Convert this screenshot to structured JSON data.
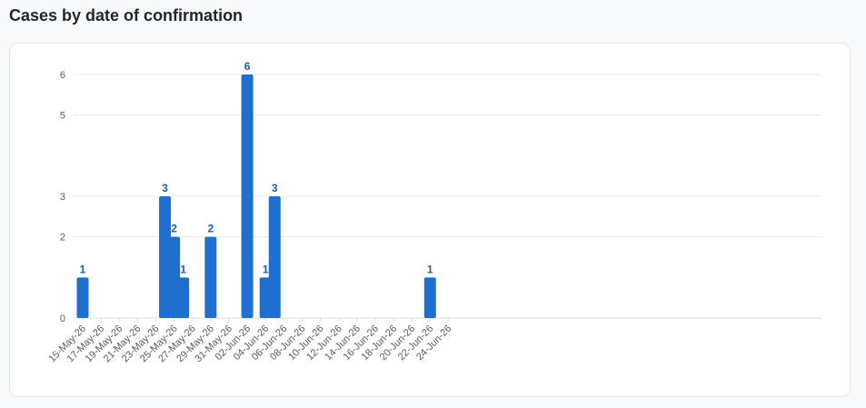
{
  "page": {
    "title": "Cases by date of confirmation"
  },
  "chart_data": {
    "type": "bar",
    "title": "",
    "xlabel": "",
    "ylabel": "",
    "color": "#1f6fd1",
    "label_color": "#1b5fa8",
    "ylim": [
      0,
      6
    ],
    "y_ticks": [
      0,
      2,
      3,
      5,
      6
    ],
    "grid": true,
    "categories": [
      "15-May-26",
      "16-May-26",
      "17-May-26",
      "18-May-26",
      "19-May-26",
      "20-May-26",
      "21-May-26",
      "22-May-26",
      "23-May-26",
      "24-May-26",
      "25-May-26",
      "26-May-26",
      "27-May-26",
      "28-May-26",
      "29-May-26",
      "30-May-26",
      "31-May-26",
      "01-Jun-26",
      "02-Jun-26",
      "03-Jun-26",
      "04-Jun-26",
      "05-Jun-26",
      "06-Jun-26",
      "07-Jun-26",
      "08-Jun-26",
      "09-Jun-26",
      "10-Jun-26",
      "11-Jun-26",
      "12-Jun-26",
      "13-Jun-26",
      "14-Jun-26",
      "15-Jun-26",
      "16-Jun-26",
      "17-Jun-26",
      "18-Jun-26",
      "19-Jun-26",
      "20-Jun-26",
      "21-Jun-26",
      "22-Jun-26",
      "23-Jun-26",
      "24-Jun-26"
    ],
    "values": [
      1,
      0,
      0,
      0,
      0,
      0,
      0,
      0,
      0,
      3,
      2,
      1,
      0,
      0,
      2,
      0,
      0,
      0,
      6,
      0,
      1,
      3,
      0,
      0,
      0,
      0,
      0,
      0,
      0,
      0,
      0,
      0,
      0,
      0,
      0,
      0,
      0,
      0,
      1,
      0,
      0
    ],
    "x_tick_labels": [
      "15-May-26",
      "17-May-26",
      "19-May-26",
      "21-May-26",
      "23-May-26",
      "25-May-26",
      "27-May-26",
      "29-May-26",
      "31-May-26",
      "02-Jun-26",
      "04-Jun-26",
      "06-Jun-26",
      "08-Jun-26",
      "10-Jun-26",
      "12-Jun-26",
      "14-Jun-26",
      "16-Jun-26",
      "18-Jun-26",
      "20-Jun-26",
      "22-Jun-26",
      "24-Jun-26"
    ]
  }
}
